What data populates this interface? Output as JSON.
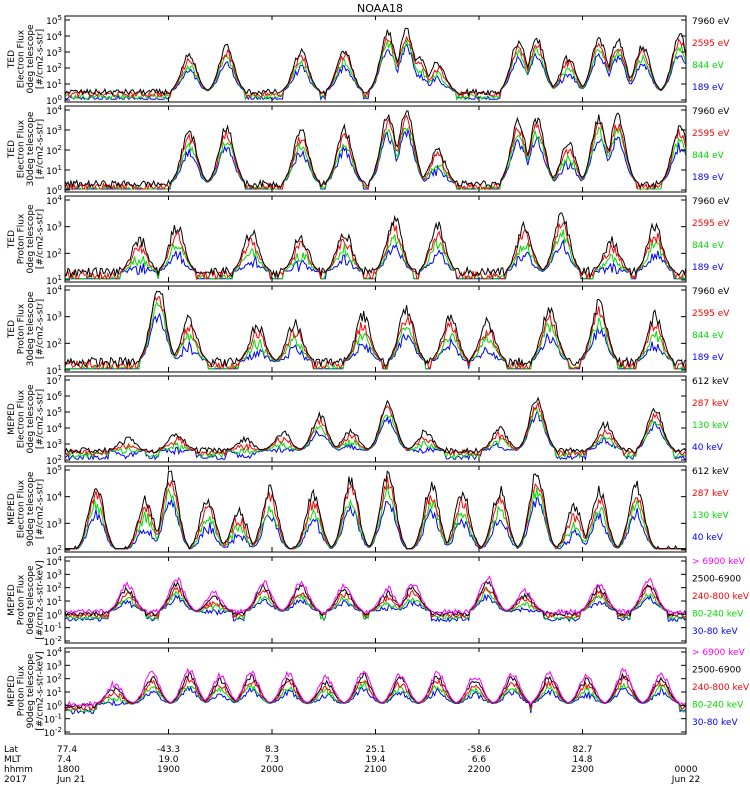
{
  "title": "NOAA18",
  "chart_data": {
    "type": "line",
    "title": "NOAA18",
    "x_ticks": [
      "1800",
      "1900",
      "2000",
      "2100",
      "2200",
      "2300",
      "0000"
    ],
    "panels": [
      {
        "ylabel": [
          "TED",
          "Electron Flux",
          "0deg telescope",
          "[#/cm2-s-str]"
        ],
        "yticks": [
          "10^0",
          "10^1",
          "10^2",
          "10^3",
          "10^4",
          "10^5"
        ],
        "legend": [
          {
            "label": "7960 eV",
            "color": "#000000"
          },
          {
            "label": "2595 eV",
            "color": "#ff0000"
          },
          {
            "label": "844 eV",
            "color": "#00dd00"
          },
          {
            "label": "189 eV",
            "color": "#0000ff"
          }
        ],
        "baseline": 0.5,
        "events": [
          [
            0.2,
            2.8
          ],
          [
            0.26,
            3.3
          ],
          [
            0.38,
            3.0
          ],
          [
            0.45,
            3.1
          ],
          [
            0.52,
            4.2
          ],
          [
            0.55,
            4.3
          ],
          [
            0.57,
            2.6
          ],
          [
            0.6,
            2.3
          ],
          [
            0.73,
            3.6
          ],
          [
            0.76,
            3.8
          ],
          [
            0.81,
            2.6
          ],
          [
            0.86,
            3.8
          ],
          [
            0.89,
            3.7
          ],
          [
            0.93,
            3.3
          ],
          [
            0.99,
            4.0
          ]
        ]
      },
      {
        "ylabel": [
          "TED",
          "Electron Flux",
          "30deg telescope",
          "[#/cm2-s-str]"
        ],
        "yticks": [
          "10^0",
          "10^1",
          "10^2",
          "10^3",
          "10^4"
        ],
        "legend": [
          {
            "label": "7960 eV",
            "color": "#000000"
          },
          {
            "label": "2595 eV",
            "color": "#ff0000"
          },
          {
            "label": "844 eV",
            "color": "#00dd00"
          },
          {
            "label": "189 eV",
            "color": "#0000ff"
          }
        ],
        "baseline": 0.3,
        "events": [
          [
            0.2,
            2.9
          ],
          [
            0.26,
            3.1
          ],
          [
            0.38,
            2.9
          ],
          [
            0.45,
            3.0
          ],
          [
            0.52,
            3.7
          ],
          [
            0.55,
            3.9
          ],
          [
            0.6,
            2.0
          ],
          [
            0.73,
            3.4
          ],
          [
            0.76,
            3.5
          ],
          [
            0.81,
            2.3
          ],
          [
            0.86,
            3.6
          ],
          [
            0.89,
            3.6
          ],
          [
            0.99,
            3.2
          ]
        ]
      },
      {
        "ylabel": [
          "TED",
          "Proton Flux",
          "0deg telescope",
          "[#/cm2-s-str]"
        ],
        "yticks": [
          "10^1",
          "10^2",
          "10^3",
          "10^4"
        ],
        "legend": [
          {
            "label": "7960 eV",
            "color": "#000000"
          },
          {
            "label": "2595 eV",
            "color": "#ff0000"
          },
          {
            "label": "844 eV",
            "color": "#00dd00"
          },
          {
            "label": "189 eV",
            "color": "#0000ff"
          }
        ],
        "baseline": 1.3,
        "events": [
          [
            0.12,
            2.5
          ],
          [
            0.18,
            3.0
          ],
          [
            0.3,
            2.8
          ],
          [
            0.38,
            2.6
          ],
          [
            0.45,
            2.8
          ],
          [
            0.53,
            3.3
          ],
          [
            0.6,
            3.0
          ],
          [
            0.74,
            3.0
          ],
          [
            0.8,
            3.4
          ],
          [
            0.88,
            2.5
          ],
          [
            0.95,
            3.0
          ]
        ]
      },
      {
        "ylabel": [
          "TED",
          "Proton Flux",
          "30deg telescope",
          "[#/cm2-s-str]"
        ],
        "yticks": [
          "10^1",
          "10^2",
          "10^3",
          "10^4"
        ],
        "legend": [
          {
            "label": "7960 eV",
            "color": "#000000"
          },
          {
            "label": "2595 eV",
            "color": "#ff0000"
          },
          {
            "label": "844 eV",
            "color": "#00dd00"
          },
          {
            "label": "189 eV",
            "color": "#0000ff"
          }
        ],
        "baseline": 1.3,
        "events": [
          [
            0.15,
            4.1
          ],
          [
            0.2,
            2.9
          ],
          [
            0.31,
            2.7
          ],
          [
            0.37,
            2.8
          ],
          [
            0.48,
            3.0
          ],
          [
            0.55,
            3.3
          ],
          [
            0.62,
            3.0
          ],
          [
            0.68,
            2.8
          ],
          [
            0.78,
            3.3
          ],
          [
            0.86,
            3.5
          ],
          [
            0.95,
            3.0
          ]
        ]
      },
      {
        "ylabel": [
          "MEPED",
          "Electron Flux",
          "0deg telescope",
          "[#/cm2-s-str]"
        ],
        "yticks": [
          "10^2",
          "10^3",
          "10^4",
          "10^5",
          "10^6",
          "10^7"
        ],
        "legend": [
          {
            "label": "612 keV",
            "color": "#000000"
          },
          {
            "label": "287 keV",
            "color": "#ff0000"
          },
          {
            "label": "130 keV",
            "color": "#00dd00"
          },
          {
            "label": "40 keV",
            "color": "#0000ff"
          }
        ],
        "baseline": 2.6,
        "events": [
          [
            0.1,
            3.3
          ],
          [
            0.18,
            3.6
          ],
          [
            0.29,
            3.2
          ],
          [
            0.35,
            3.7
          ],
          [
            0.41,
            4.8
          ],
          [
            0.46,
            3.8
          ],
          [
            0.52,
            5.6
          ],
          [
            0.58,
            3.7
          ],
          [
            0.7,
            3.9
          ],
          [
            0.76,
            5.8
          ],
          [
            0.87,
            4.2
          ],
          [
            0.95,
            5.2
          ]
        ]
      },
      {
        "ylabel": [
          "MEPED",
          "Electron Flux",
          "90deg telescope",
          "[#/cm2-s-str]"
        ],
        "yticks": [
          "10^2",
          "10^3",
          "10^4",
          "10^5"
        ],
        "legend": [
          {
            "label": "612 keV",
            "color": "#000000"
          },
          {
            "label": "287 keV",
            "color": "#ff0000"
          },
          {
            "label": "130 keV",
            "color": "#00dd00"
          },
          {
            "label": "40 keV",
            "color": "#0000ff"
          }
        ],
        "baseline": 2.0,
        "events": [
          [
            0.05,
            4.4
          ],
          [
            0.13,
            3.9
          ],
          [
            0.17,
            4.9
          ],
          [
            0.23,
            3.9
          ],
          [
            0.28,
            3.5
          ],
          [
            0.33,
            4.3
          ],
          [
            0.4,
            4.1
          ],
          [
            0.46,
            4.6
          ],
          [
            0.52,
            4.9
          ],
          [
            0.59,
            4.4
          ],
          [
            0.64,
            4.1
          ],
          [
            0.7,
            4.2
          ],
          [
            0.76,
            4.9
          ],
          [
            0.82,
            3.6
          ],
          [
            0.86,
            4.2
          ],
          [
            0.92,
            4.4
          ]
        ]
      },
      {
        "ylabel": [
          "MEPED",
          "Proton Flux",
          "0deg telescope",
          "[#/cm2-s-str-keV]"
        ],
        "yticks": [
          "10^-2",
          "10^-1",
          "10^0",
          "10^1",
          "10^2",
          "10^3",
          "10^4"
        ],
        "legend": [
          {
            "label": "> 6900 keV",
            "color": "#ff00ff"
          },
          {
            "label": "2500-6900",
            "color": "#000000"
          },
          {
            "label": "240-800 keV",
            "color": "#ff0000"
          },
          {
            "label": "80-240 keV",
            "color": "#00dd00"
          },
          {
            "label": "30-80 keV",
            "color": "#0000ff"
          }
        ],
        "baseline": 0.2,
        "events": [
          [
            0.1,
            2.2
          ],
          [
            0.18,
            2.6
          ],
          [
            0.24,
            1.6
          ],
          [
            0.32,
            2.4
          ],
          [
            0.38,
            2.4
          ],
          [
            0.45,
            2.2
          ],
          [
            0.52,
            1.9
          ],
          [
            0.56,
            2.3
          ],
          [
            0.68,
            2.7
          ],
          [
            0.74,
            1.8
          ],
          [
            0.86,
            2.3
          ],
          [
            0.94,
            2.6
          ]
        ]
      },
      {
        "ylabel": [
          "MEPED",
          "Proton Flux",
          "90deg telescope",
          "[#/cm2-s-str-keV]"
        ],
        "yticks": [
          "10^-2",
          "10^-1",
          "10^0",
          "10^1",
          "10^2",
          "10^3",
          "10^4"
        ],
        "legend": [
          {
            "label": "> 6900 keV",
            "color": "#ff00ff"
          },
          {
            "label": "2500-6900",
            "color": "#000000"
          },
          {
            "label": "240-800 keV",
            "color": "#ff0000"
          },
          {
            "label": "80-240 keV",
            "color": "#00dd00"
          },
          {
            "label": "30-80 keV",
            "color": "#0000ff"
          }
        ],
        "baseline": 0.1,
        "events": [
          [
            0.08,
            1.6
          ],
          [
            0.14,
            2.4
          ],
          [
            0.2,
            2.6
          ],
          [
            0.25,
            2.2
          ],
          [
            0.3,
            2.5
          ],
          [
            0.36,
            2.4
          ],
          [
            0.42,
            2.1
          ],
          [
            0.48,
            2.6
          ],
          [
            0.54,
            2.3
          ],
          [
            0.6,
            2.4
          ],
          [
            0.66,
            2.2
          ],
          [
            0.72,
            2.4
          ],
          [
            0.78,
            2.4
          ],
          [
            0.84,
            2.2
          ],
          [
            0.9,
            2.6
          ],
          [
            0.96,
            2.4
          ]
        ]
      }
    ],
    "x_info": {
      "row_labels": [
        "Lat",
        "MLT",
        "hhmm",
        "2017"
      ],
      "columns": [
        {
          "lat": "77.4",
          "mlt": "7.4",
          "hhmm": "1800",
          "date": "Jun 21"
        },
        {
          "lat": "-43.3",
          "mlt": "19.0",
          "hhmm": "1900",
          "date": ""
        },
        {
          "lat": "8.3",
          "mlt": "7.3",
          "hhmm": "2000",
          "date": ""
        },
        {
          "lat": "25.1",
          "mlt": "19.4",
          "hhmm": "2100",
          "date": ""
        },
        {
          "lat": "-58.6",
          "mlt": "6.6",
          "hhmm": "2200",
          "date": ""
        },
        {
          "lat": "82.7",
          "mlt": "14.8",
          "hhmm": "2300",
          "date": ""
        },
        {
          "lat": "",
          "mlt": "",
          "hhmm": "0000",
          "date": "Jun 22"
        }
      ]
    }
  }
}
